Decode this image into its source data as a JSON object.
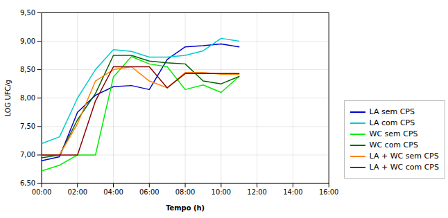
{
  "chart_data": {
    "type": "line",
    "xlabel": "Tempo (h)",
    "ylabel": "LOG UFC/g",
    "x": [
      0,
      1,
      2,
      3,
      4,
      5,
      6,
      7,
      8,
      9,
      10,
      11
    ],
    "series": [
      {
        "name": "LA sem CPS",
        "color": "#0000CC",
        "values": [
          6.9,
          6.97,
          7.75,
          8.05,
          8.2,
          8.22,
          8.15,
          8.68,
          8.9,
          8.92,
          8.95,
          8.9
        ]
      },
      {
        "name": "LA com CPS",
        "color": "#00CCCC",
        "values": [
          7.2,
          7.32,
          8.0,
          8.5,
          8.85,
          8.82,
          8.72,
          8.72,
          8.75,
          8.83,
          9.05,
          9.0
        ]
      },
      {
        "name": "WC sem CPS",
        "color": "#00EE00",
        "values": [
          6.72,
          6.82,
          7.0,
          7.0,
          8.37,
          8.73,
          8.6,
          8.55,
          8.15,
          8.23,
          8.1,
          8.38
        ]
      },
      {
        "name": "WC com CPS",
        "color": "#006400",
        "values": [
          6.95,
          7.0,
          7.62,
          8.08,
          8.75,
          8.75,
          8.65,
          8.62,
          8.6,
          8.3,
          8.25,
          8.38
        ]
      },
      {
        "name": "LA + WC sem CPS",
        "color": "#FF8000",
        "values": [
          7.0,
          7.0,
          7.55,
          8.3,
          8.5,
          8.55,
          8.3,
          8.18,
          8.45,
          8.45,
          8.42,
          8.42
        ]
      },
      {
        "name": "LA + WC com CPS",
        "color": "#8B0000",
        "values": [
          7.0,
          7.0,
          7.0,
          7.95,
          8.55,
          8.55,
          8.55,
          8.18,
          8.43,
          8.43,
          8.43,
          8.43
        ]
      }
    ],
    "xlim": [
      0,
      16
    ],
    "ylim": [
      6.5,
      9.5
    ],
    "xticks": [
      {
        "value": 0,
        "label": "00:00"
      },
      {
        "value": 2,
        "label": "02:00"
      },
      {
        "value": 4,
        "label": "04:00"
      },
      {
        "value": 6,
        "label": "06:00"
      },
      {
        "value": 8,
        "label": "08:00"
      },
      {
        "value": 10,
        "label": "10:00"
      },
      {
        "value": 12,
        "label": "12:00"
      },
      {
        "value": 14,
        "label": "14:00"
      },
      {
        "value": 16,
        "label": "16:00"
      }
    ],
    "yticks": [
      {
        "value": 6.5,
        "label": "6,50"
      },
      {
        "value": 7.0,
        "label": "7,00"
      },
      {
        "value": 7.5,
        "label": "7,50"
      },
      {
        "value": 8.0,
        "label": "8,00"
      },
      {
        "value": 8.5,
        "label": "8,50"
      },
      {
        "value": 9.0,
        "label": "9,00"
      },
      {
        "value": 9.5,
        "label": "9,50"
      }
    ],
    "grid": true,
    "legend": "right"
  }
}
